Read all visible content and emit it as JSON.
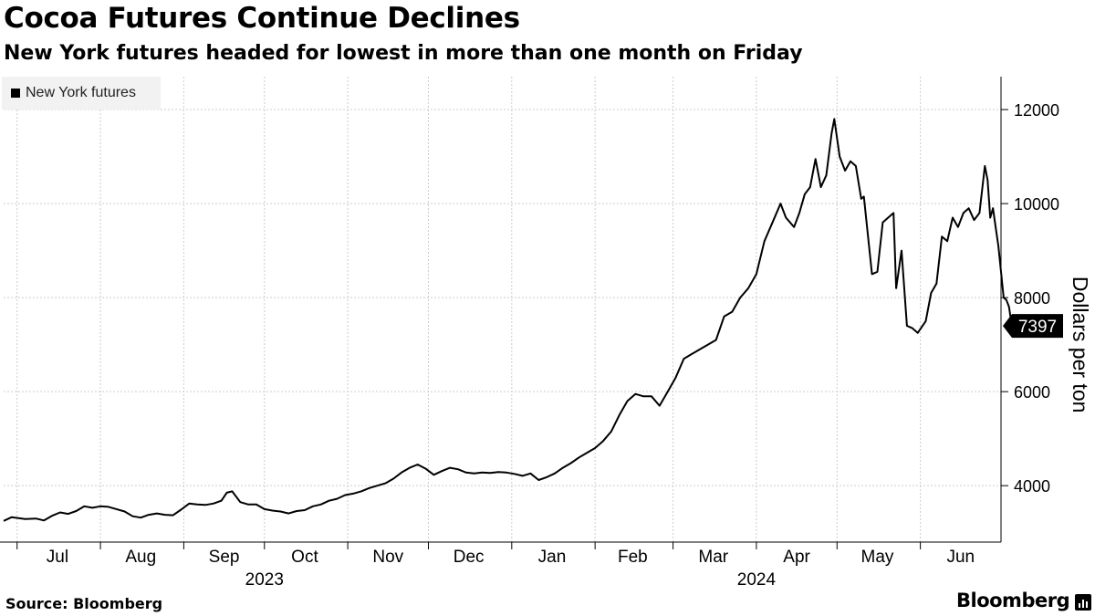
{
  "header": {
    "title": "Cocoa Futures Continue Declines",
    "subtitle": "New York futures headed for lowest in more than one month on Friday"
  },
  "footer": {
    "source": "Source: Bloomberg",
    "brand": "Bloomberg"
  },
  "colors": {
    "line": "#000000",
    "grid": "#cccccc",
    "last_value_badge": "#000000",
    "legend_bg": "#f2f2f2"
  },
  "chart_data": {
    "type": "line",
    "title": "Cocoa Futures Continue Declines",
    "subtitle": "New York futures headed for lowest in more than one month on Friday",
    "xlabel": "",
    "ylabel": "Dollars per ton",
    "ylim": [
      2800,
      12700
    ],
    "xlim": [
      "2023-06-26",
      "2024-07-01"
    ],
    "y_ticks": [
      4000,
      6000,
      8000,
      10000,
      12000
    ],
    "y_tick_labels": [
      "4000",
      "6000",
      "8000",
      "10000",
      "12000"
    ],
    "x_ticks": [
      "Jul",
      "Aug",
      "Sep",
      "Oct",
      "Nov",
      "Dec",
      "Jan",
      "Feb",
      "Mar",
      "Apr",
      "May",
      "Jun"
    ],
    "x_tick_dates": [
      "2023-07-16",
      "2023-08-16",
      "2023-09-16",
      "2023-10-16",
      "2023-11-16",
      "2023-12-16",
      "2024-01-16",
      "2024-02-15",
      "2024-03-16",
      "2024-04-16",
      "2024-05-16",
      "2024-06-16"
    ],
    "month_boundaries": [
      "2023-07-01",
      "2023-08-01",
      "2023-09-01",
      "2023-10-01",
      "2023-11-01",
      "2023-12-01",
      "2024-01-01",
      "2024-02-01",
      "2024-03-01",
      "2024-04-01",
      "2024-05-01",
      "2024-06-01"
    ],
    "year_labels": [
      {
        "label": "2023",
        "date": "2023-10-01"
      },
      {
        "label": "2024",
        "date": "2024-04-01"
      }
    ],
    "grid": true,
    "legend": {
      "placement": "top-left",
      "entries": [
        "New York futures"
      ]
    },
    "last_value_label": "7397",
    "series": [
      {
        "name": "New York futures",
        "color": "#000000",
        "points": [
          [
            "2023-06-26",
            3250
          ],
          [
            "2023-06-29",
            3330
          ],
          [
            "2023-07-04",
            3290
          ],
          [
            "2023-07-08",
            3300
          ],
          [
            "2023-07-11",
            3260
          ],
          [
            "2023-07-14",
            3360
          ],
          [
            "2023-07-17",
            3430
          ],
          [
            "2023-07-20",
            3400
          ],
          [
            "2023-07-23",
            3460
          ],
          [
            "2023-07-26",
            3560
          ],
          [
            "2023-07-29",
            3530
          ],
          [
            "2023-08-01",
            3560
          ],
          [
            "2023-08-04",
            3550
          ],
          [
            "2023-08-07",
            3500
          ],
          [
            "2023-08-10",
            3450
          ],
          [
            "2023-08-13",
            3350
          ],
          [
            "2023-08-16",
            3320
          ],
          [
            "2023-08-19",
            3380
          ],
          [
            "2023-08-22",
            3410
          ],
          [
            "2023-08-25",
            3380
          ],
          [
            "2023-08-28",
            3370
          ],
          [
            "2023-08-31",
            3490
          ],
          [
            "2023-09-03",
            3620
          ],
          [
            "2023-09-06",
            3600
          ],
          [
            "2023-09-09",
            3590
          ],
          [
            "2023-09-12",
            3620
          ],
          [
            "2023-09-15",
            3680
          ],
          [
            "2023-09-17",
            3850
          ],
          [
            "2023-09-19",
            3880
          ],
          [
            "2023-09-22",
            3650
          ],
          [
            "2023-09-25",
            3600
          ],
          [
            "2023-09-28",
            3600
          ],
          [
            "2023-10-01",
            3500
          ],
          [
            "2023-10-04",
            3470
          ],
          [
            "2023-10-07",
            3450
          ],
          [
            "2023-10-10",
            3410
          ],
          [
            "2023-10-13",
            3460
          ],
          [
            "2023-10-16",
            3480
          ],
          [
            "2023-10-19",
            3560
          ],
          [
            "2023-10-22",
            3600
          ],
          [
            "2023-10-25",
            3680
          ],
          [
            "2023-10-28",
            3720
          ],
          [
            "2023-10-31",
            3800
          ],
          [
            "2023-11-03",
            3830
          ],
          [
            "2023-11-06",
            3880
          ],
          [
            "2023-11-09",
            3950
          ],
          [
            "2023-11-12",
            4000
          ],
          [
            "2023-11-15",
            4050
          ],
          [
            "2023-11-18",
            4150
          ],
          [
            "2023-11-21",
            4280
          ],
          [
            "2023-11-24",
            4380
          ],
          [
            "2023-11-27",
            4450
          ],
          [
            "2023-11-30",
            4360
          ],
          [
            "2023-12-03",
            4230
          ],
          [
            "2023-12-06",
            4310
          ],
          [
            "2023-12-09",
            4380
          ],
          [
            "2023-12-12",
            4350
          ],
          [
            "2023-12-15",
            4280
          ],
          [
            "2023-12-18",
            4260
          ],
          [
            "2023-12-21",
            4280
          ],
          [
            "2023-12-24",
            4270
          ],
          [
            "2023-12-27",
            4290
          ],
          [
            "2023-12-30",
            4280
          ],
          [
            "2024-01-02",
            4250
          ],
          [
            "2024-01-05",
            4210
          ],
          [
            "2024-01-08",
            4260
          ],
          [
            "2024-01-11",
            4120
          ],
          [
            "2024-01-14",
            4180
          ],
          [
            "2024-01-17",
            4260
          ],
          [
            "2024-01-20",
            4380
          ],
          [
            "2024-01-23",
            4480
          ],
          [
            "2024-01-26",
            4600
          ],
          [
            "2024-01-29",
            4700
          ],
          [
            "2024-02-01",
            4800
          ],
          [
            "2024-02-04",
            4950
          ],
          [
            "2024-02-07",
            5150
          ],
          [
            "2024-02-10",
            5500
          ],
          [
            "2024-02-13",
            5800
          ],
          [
            "2024-02-16",
            5950
          ],
          [
            "2024-02-19",
            5900
          ],
          [
            "2024-02-22",
            5900
          ],
          [
            "2024-02-25",
            5700
          ],
          [
            "2024-02-28",
            6000
          ],
          [
            "2024-03-02",
            6300
          ],
          [
            "2024-03-05",
            6700
          ],
          [
            "2024-03-08",
            6800
          ],
          [
            "2024-03-11",
            6900
          ],
          [
            "2024-03-14",
            7000
          ],
          [
            "2024-03-17",
            7100
          ],
          [
            "2024-03-20",
            7600
          ],
          [
            "2024-03-23",
            7700
          ],
          [
            "2024-03-26",
            8000
          ],
          [
            "2024-03-29",
            8200
          ],
          [
            "2024-04-01",
            8500
          ],
          [
            "2024-04-04",
            9200
          ],
          [
            "2024-04-07",
            9600
          ],
          [
            "2024-04-10",
            10000
          ],
          [
            "2024-04-12",
            9700
          ],
          [
            "2024-04-15",
            9500
          ],
          [
            "2024-04-17",
            9800
          ],
          [
            "2024-04-19",
            10200
          ],
          [
            "2024-04-21",
            10350
          ],
          [
            "2024-04-23",
            10950
          ],
          [
            "2024-04-25",
            10350
          ],
          [
            "2024-04-27",
            10600
          ],
          [
            "2024-04-29",
            11500
          ],
          [
            "2024-04-30",
            11800
          ],
          [
            "2024-05-02",
            11000
          ],
          [
            "2024-05-04",
            10700
          ],
          [
            "2024-05-06",
            10900
          ],
          [
            "2024-05-08",
            10800
          ],
          [
            "2024-05-10",
            10100
          ],
          [
            "2024-05-11",
            10150
          ],
          [
            "2024-05-14",
            8500
          ],
          [
            "2024-05-16",
            8550
          ],
          [
            "2024-05-18",
            9600
          ],
          [
            "2024-05-20",
            9700
          ],
          [
            "2024-05-22",
            9800
          ],
          [
            "2024-05-23",
            8200
          ],
          [
            "2024-05-25",
            9000
          ],
          [
            "2024-05-27",
            7400
          ],
          [
            "2024-05-29",
            7350
          ],
          [
            "2024-05-31",
            7250
          ],
          [
            "2024-06-03",
            7500
          ],
          [
            "2024-06-05",
            8100
          ],
          [
            "2024-06-07",
            8300
          ],
          [
            "2024-06-09",
            9300
          ],
          [
            "2024-06-11",
            9200
          ],
          [
            "2024-06-13",
            9700
          ],
          [
            "2024-06-15",
            9500
          ],
          [
            "2024-06-17",
            9800
          ],
          [
            "2024-06-19",
            9900
          ],
          [
            "2024-06-21",
            9650
          ],
          [
            "2024-06-23",
            9800
          ],
          [
            "2024-06-25",
            10800
          ],
          [
            "2024-06-26",
            10500
          ],
          [
            "2024-06-27",
            9700
          ],
          [
            "2024-06-28",
            9900
          ],
          [
            "2024-06-29",
            9500
          ],
          [
            "2024-06-30",
            9100
          ],
          [
            "2024-07-02",
            8000
          ],
          [
            "2024-07-03",
            7950
          ],
          [
            "2024-07-04",
            7800
          ],
          [
            "2024-07-05",
            7397
          ]
        ]
      }
    ]
  }
}
